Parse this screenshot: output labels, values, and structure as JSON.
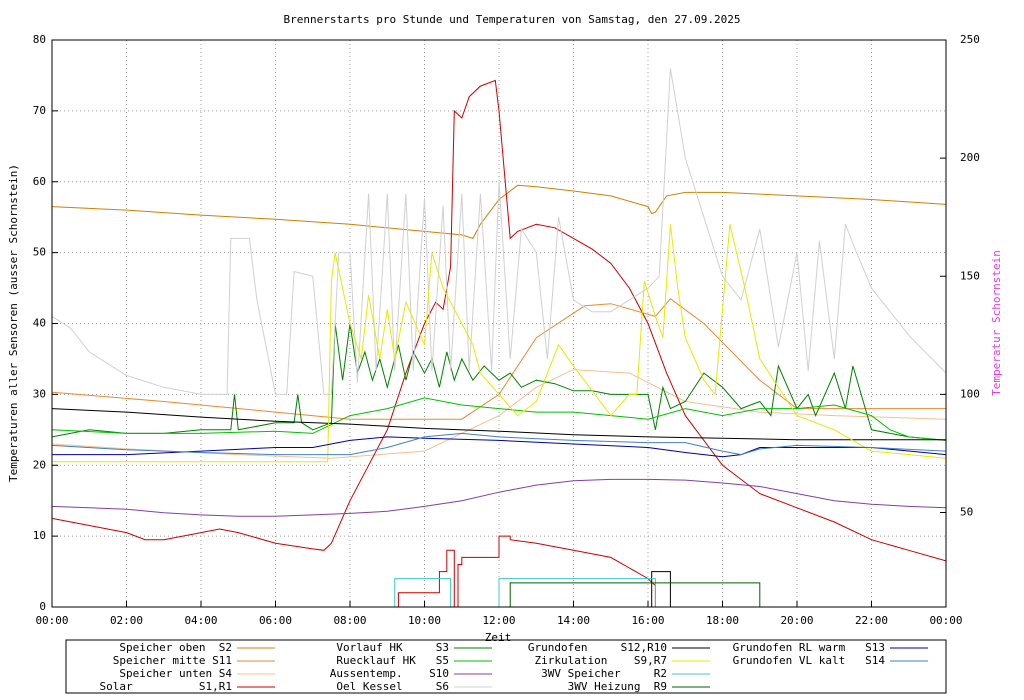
{
  "chart_data": {
    "type": "line",
    "title": "Brennerstarts pro Stunde und Temperaturen von Samstag, den 27.09.2025",
    "x_label": "Zeit",
    "y_label": "Temperaturen aller Sensoren (ausser Schornstein)",
    "y2_label": "Temperatur Schornstein",
    "y2_label_color": "#e040e0",
    "xlim": [
      0,
      24
    ],
    "xticks": [
      {
        "value": 0,
        "label": "00:00"
      },
      {
        "value": 2,
        "label": "02:00"
      },
      {
        "value": 4,
        "label": "04:00"
      },
      {
        "value": 6,
        "label": "06:00"
      },
      {
        "value": 8,
        "label": "08:00"
      },
      {
        "value": 10,
        "label": "10:00"
      },
      {
        "value": 12,
        "label": "12:00"
      },
      {
        "value": 14,
        "label": "14:00"
      },
      {
        "value": 16,
        "label": "16:00"
      },
      {
        "value": 18,
        "label": "18:00"
      },
      {
        "value": 20,
        "label": "20:00"
      },
      {
        "value": 22,
        "label": "22:00"
      },
      {
        "value": 24,
        "label": "00:00"
      }
    ],
    "ylim": [
      0,
      80
    ],
    "yticks": [
      0,
      10,
      20,
      30,
      40,
      50,
      60,
      70,
      80
    ],
    "y2lim": [
      10,
      250
    ],
    "y2ticks": [
      50,
      100,
      150,
      200,
      250
    ],
    "grid": true,
    "legend": "bottom",
    "series": [
      {
        "name": "Speicher oben  S2",
        "color": "#d08000",
        "x": [
          0,
          2,
          4,
          6,
          8,
          10,
          11,
          11.3,
          11.5,
          12,
          12.5,
          13,
          14,
          15,
          16,
          16.1,
          16.2,
          16.5,
          17,
          18,
          20,
          22,
          24
        ],
        "values": [
          56.5,
          56,
          55.3,
          54.7,
          54,
          53,
          52.5,
          52,
          54,
          57.5,
          59.5,
          59.3,
          58.7,
          58,
          56.5,
          55.5,
          55.7,
          58,
          58.5,
          58.5,
          58,
          57.5,
          56.8
        ]
      },
      {
        "name": "Speicher mitte S11",
        "color": "#e88a30",
        "x": [
          0,
          3,
          6,
          8,
          11,
          12,
          13,
          14.3,
          15,
          16.2,
          16.6,
          17.5,
          19,
          20,
          22,
          24
        ],
        "values": [
          30.3,
          29,
          27.5,
          26.5,
          26.5,
          30,
          38,
          42.5,
          42.8,
          41,
          43.5,
          40,
          32,
          28,
          28,
          28
        ]
      },
      {
        "name": "Speicher unten S4",
        "color": "#f4c090",
        "x": [
          0,
          2,
          5,
          7.5,
          10,
          12,
          13,
          14,
          15.5,
          17,
          19,
          21,
          24
        ],
        "values": [
          23,
          22.3,
          21.5,
          21,
          22,
          27,
          31,
          33.5,
          33,
          29,
          27.5,
          27,
          26.5
        ]
      },
      {
        "name": "Solar          S1,R1",
        "color": "#cc0000",
        "x": [
          0,
          1,
          2,
          2.5,
          3,
          4,
          4.5,
          5,
          6,
          7,
          7.3,
          7.5,
          8,
          8.5,
          9,
          9.5,
          10,
          10.3,
          10.5,
          10.7,
          10.8,
          11,
          11.2,
          11.5,
          11.9,
          12,
          12.3,
          12.5,
          13,
          13.5,
          14,
          14.5,
          15,
          15.5,
          16,
          16.5,
          17,
          18,
          19,
          20,
          21,
          22,
          23,
          24,
          9.3,
          9.3,
          9.3,
          10.4,
          10.4,
          10.6,
          10.6,
          10.8,
          10.8,
          10.9,
          10.9,
          11,
          11,
          12,
          12,
          12.3,
          12.3,
          13,
          14,
          15,
          15.5,
          16,
          16.2,
          16.2
        ],
        "values": [
          12.5,
          11.5,
          10.5,
          9.5,
          9.5,
          10.5,
          11,
          10.5,
          9,
          8.2,
          8,
          9,
          15,
          20,
          25,
          33,
          40,
          43,
          42,
          48,
          70,
          69,
          72,
          73.5,
          74.3,
          70,
          52,
          53,
          54,
          53.5,
          52,
          50.5,
          48.5,
          45,
          40,
          33,
          27,
          20,
          16,
          14,
          12,
          9.5,
          8,
          6.5,
          null,
          0,
          2,
          2,
          5,
          5,
          8,
          8,
          0,
          0,
          6,
          6,
          7,
          7,
          10,
          10,
          9.5,
          9,
          8,
          7,
          5.5,
          4,
          3,
          0
        ]
      },
      {
        "name": "Vorlauf HK     S3",
        "color": "#008000",
        "x": [
          0,
          1,
          2,
          3,
          4,
          4.8,
          4.9,
          5,
          6,
          6.5,
          6.6,
          6.7,
          7,
          7.5,
          7.6,
          7.8,
          8,
          8.2,
          8.4,
          8.6,
          8.8,
          9,
          9.3,
          9.5,
          9.7,
          10,
          10.2,
          10.4,
          10.6,
          10.8,
          11,
          11.3,
          11.6,
          12,
          12.3,
          12.6,
          13,
          13.5,
          14,
          14.5,
          15,
          15.5,
          16,
          16.2,
          16.4,
          16.6,
          17,
          17.5,
          18,
          18.5,
          19,
          19.3,
          19.5,
          20,
          20.3,
          20.5,
          21,
          21.3,
          21.5,
          22,
          23,
          24
        ],
        "values": [
          24,
          25,
          24.5,
          24.5,
          25,
          25,
          30,
          25,
          26,
          26,
          30,
          26,
          25,
          26,
          40,
          32,
          40,
          33,
          36,
          32,
          35,
          31,
          37,
          32,
          36,
          33,
          35,
          31,
          36,
          32,
          35,
          32,
          34,
          32,
          33,
          31,
          32,
          31.5,
          30.5,
          30.5,
          30,
          30,
          30,
          25,
          31,
          28,
          29,
          33,
          31,
          28,
          29,
          27,
          34,
          28,
          30,
          27,
          33,
          28,
          34,
          25,
          24,
          23.5
        ]
      },
      {
        "name": "Ruecklauf HK   S5",
        "color": "#00c000",
        "x": [
          0,
          2,
          4,
          6,
          7,
          8,
          9,
          10,
          11,
          12,
          13,
          14,
          15,
          16,
          17,
          18,
          19,
          20,
          21,
          22,
          22.5,
          23,
          24
        ],
        "values": [
          25,
          24.5,
          24.5,
          24.8,
          24.5,
          27,
          28,
          29.5,
          28.5,
          28,
          27.5,
          27.5,
          27,
          26.5,
          28,
          27,
          28,
          28,
          28.5,
          27,
          25,
          24,
          23.5
        ]
      },
      {
        "name": "Aussentemp.    S10",
        "color": "#8040a0",
        "x": [
          0,
          1,
          2,
          3,
          4,
          5,
          6,
          7,
          8,
          9,
          10,
          11,
          12,
          13,
          14,
          15,
          16,
          17,
          18,
          19,
          20,
          21,
          22,
          23,
          24
        ],
        "values": [
          14.2,
          14,
          13.8,
          13.3,
          13,
          12.8,
          12.8,
          13,
          13.2,
          13.5,
          14.2,
          15,
          16.2,
          17.2,
          17.8,
          18,
          18,
          17.9,
          17.5,
          17,
          16,
          15,
          14.5,
          14.2,
          14
        ]
      },
      {
        "name": "Oel Kessel     S6",
        "color": "#d0d0d0",
        "axis": "y2",
        "x": [
          0,
          0.5,
          1,
          2,
          3,
          4,
          4.7,
          4.8,
          5.3,
          5.5,
          6,
          6.3,
          6.5,
          7,
          7.3,
          7.5,
          7.7,
          8,
          8.2,
          8.5,
          8.7,
          9,
          9.2,
          9.5,
          9.7,
          10,
          10.2,
          10.5,
          10.7,
          11,
          11.2,
          11.5,
          11.8,
          12,
          12.3,
          12.6,
          13,
          13.3,
          13.6,
          14,
          14.5,
          15,
          15.5,
          16,
          16.3,
          16.6,
          17,
          17.5,
          18,
          18.5,
          19,
          19.5,
          20,
          20.3,
          20.6,
          21,
          21.3,
          21.6,
          22,
          23,
          24
        ],
        "values": [
          133,
          128,
          118,
          108,
          103,
          100,
          100,
          166,
          166,
          140,
          100,
          100,
          152,
          150,
          100,
          100,
          160,
          160,
          105,
          185,
          110,
          185,
          110,
          185,
          110,
          183,
          110,
          180,
          110,
          185,
          110,
          185,
          110,
          190,
          115,
          170,
          160,
          115,
          175,
          140,
          135,
          135,
          140,
          145,
          150,
          238,
          200,
          175,
          150,
          140,
          170,
          120,
          160,
          110,
          165,
          115,
          172,
          160,
          145,
          125,
          109
        ]
      },
      {
        "name": "Grundofen     S12,R10",
        "color": "#000000",
        "x": [
          0,
          2,
          4,
          6,
          8,
          10,
          12,
          14,
          16,
          18,
          20,
          22,
          24,
          16.1,
          16.1,
          16.1,
          16.6,
          16.6
        ],
        "values": [
          28,
          27.5,
          26.8,
          26.2,
          25.8,
          25.2,
          24.8,
          24.3,
          24,
          23.8,
          23.6,
          23.6,
          23.6,
          null,
          0,
          5,
          5,
          0
        ]
      },
      {
        "name": "Zirkulation    S9,R7",
        "color": "#e8e800",
        "x": [
          0,
          4,
          7.4,
          7.5,
          7.6,
          8,
          8.3,
          8.5,
          8.8,
          9,
          9.2,
          9.5,
          10,
          10.2,
          10.5,
          11,
          11.3,
          11.5,
          12,
          12.5,
          13,
          13.3,
          13.6,
          14,
          15,
          15.5,
          15.7,
          15.9,
          16.2,
          16.4,
          16.6,
          16.8,
          17,
          17.5,
          17.8,
          18.2,
          18.6,
          19,
          20,
          21,
          22,
          23,
          24
        ],
        "values": [
          20.5,
          20.5,
          20.5,
          46,
          50,
          40,
          35,
          44,
          35,
          42,
          35,
          43,
          37,
          50,
          45,
          40,
          37,
          33,
          30,
          27,
          29,
          33,
          37,
          34,
          27,
          30,
          30,
          46,
          41,
          38,
          54,
          45,
          38,
          32,
          30,
          54,
          45,
          35,
          27,
          25,
          22,
          21.5,
          21
        ]
      },
      {
        "name": "3WV Speicher     R2",
        "color": "#40c8c8",
        "x": [
          9.2,
          9.2,
          9.8,
          9.8,
          10.7,
          10.7,
          12,
          12,
          16.2,
          16.2
        ],
        "values": [
          0,
          4,
          4,
          4,
          4,
          0,
          0,
          4,
          4,
          0
        ]
      },
      {
        "name": "3WV Heizung  R9",
        "color": "#006000",
        "x": [
          12.3,
          12.3,
          19,
          19
        ],
        "values": [
          0,
          3.4,
          3.4,
          0
        ]
      },
      {
        "name": "Grundofen RL warm   S13",
        "color": "#0000a0",
        "x": [
          0,
          2,
          4,
          6,
          7,
          8,
          9,
          10,
          12,
          14,
          16,
          17,
          18,
          18.5,
          19,
          20,
          22,
          24
        ],
        "values": [
          21.5,
          21.5,
          22,
          22.5,
          22.5,
          23.5,
          24,
          23.8,
          23.5,
          23,
          22.5,
          21.8,
          21.2,
          21.5,
          22.5,
          22.5,
          22.5,
          21.5
        ]
      },
      {
        "name": "Grundofen VL kalt   S14",
        "color": "#4080c0",
        "x": [
          0,
          2,
          4,
          6,
          8,
          9,
          10,
          11,
          12,
          14,
          16,
          17,
          18,
          18.5,
          19,
          20,
          22,
          24
        ],
        "values": [
          22.8,
          22.2,
          21.8,
          21.5,
          21.5,
          22.5,
          24,
          24.5,
          24,
          23.5,
          23.2,
          23.2,
          22,
          21.5,
          22.3,
          22.8,
          22.5,
          22
        ]
      }
    ]
  }
}
